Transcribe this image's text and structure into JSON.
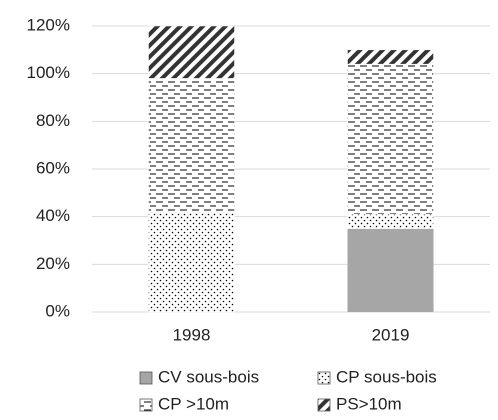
{
  "chart_data": {
    "type": "stacked_bar",
    "categories": [
      "1998",
      "2019"
    ],
    "series": [
      {
        "name": "CV sous-bois",
        "color": "#a6a6a6",
        "pattern": "solid",
        "values": [
          0,
          35
        ]
      },
      {
        "name": "CP sous-bois",
        "color": "#000000",
        "pattern": "dots",
        "values": [
          42,
          6
        ]
      },
      {
        "name": "CP >10m",
        "color": "#000000",
        "pattern": "dashes",
        "values": [
          56,
          63
        ]
      },
      {
        "name": "PS>10m",
        "color": "#000000",
        "pattern": "diagonal",
        "values": [
          22,
          6
        ]
      }
    ],
    "ylim": [
      0,
      120
    ],
    "yticks": [
      {
        "value": 0,
        "label": "0%"
      },
      {
        "value": 20,
        "label": "20%"
      },
      {
        "value": 40,
        "label": "40%"
      },
      {
        "value": 60,
        "label": "60%"
      },
      {
        "value": 80,
        "label": "80%"
      },
      {
        "value": 100,
        "label": "100%"
      },
      {
        "value": 120,
        "label": "120%"
      }
    ],
    "grid": true
  }
}
